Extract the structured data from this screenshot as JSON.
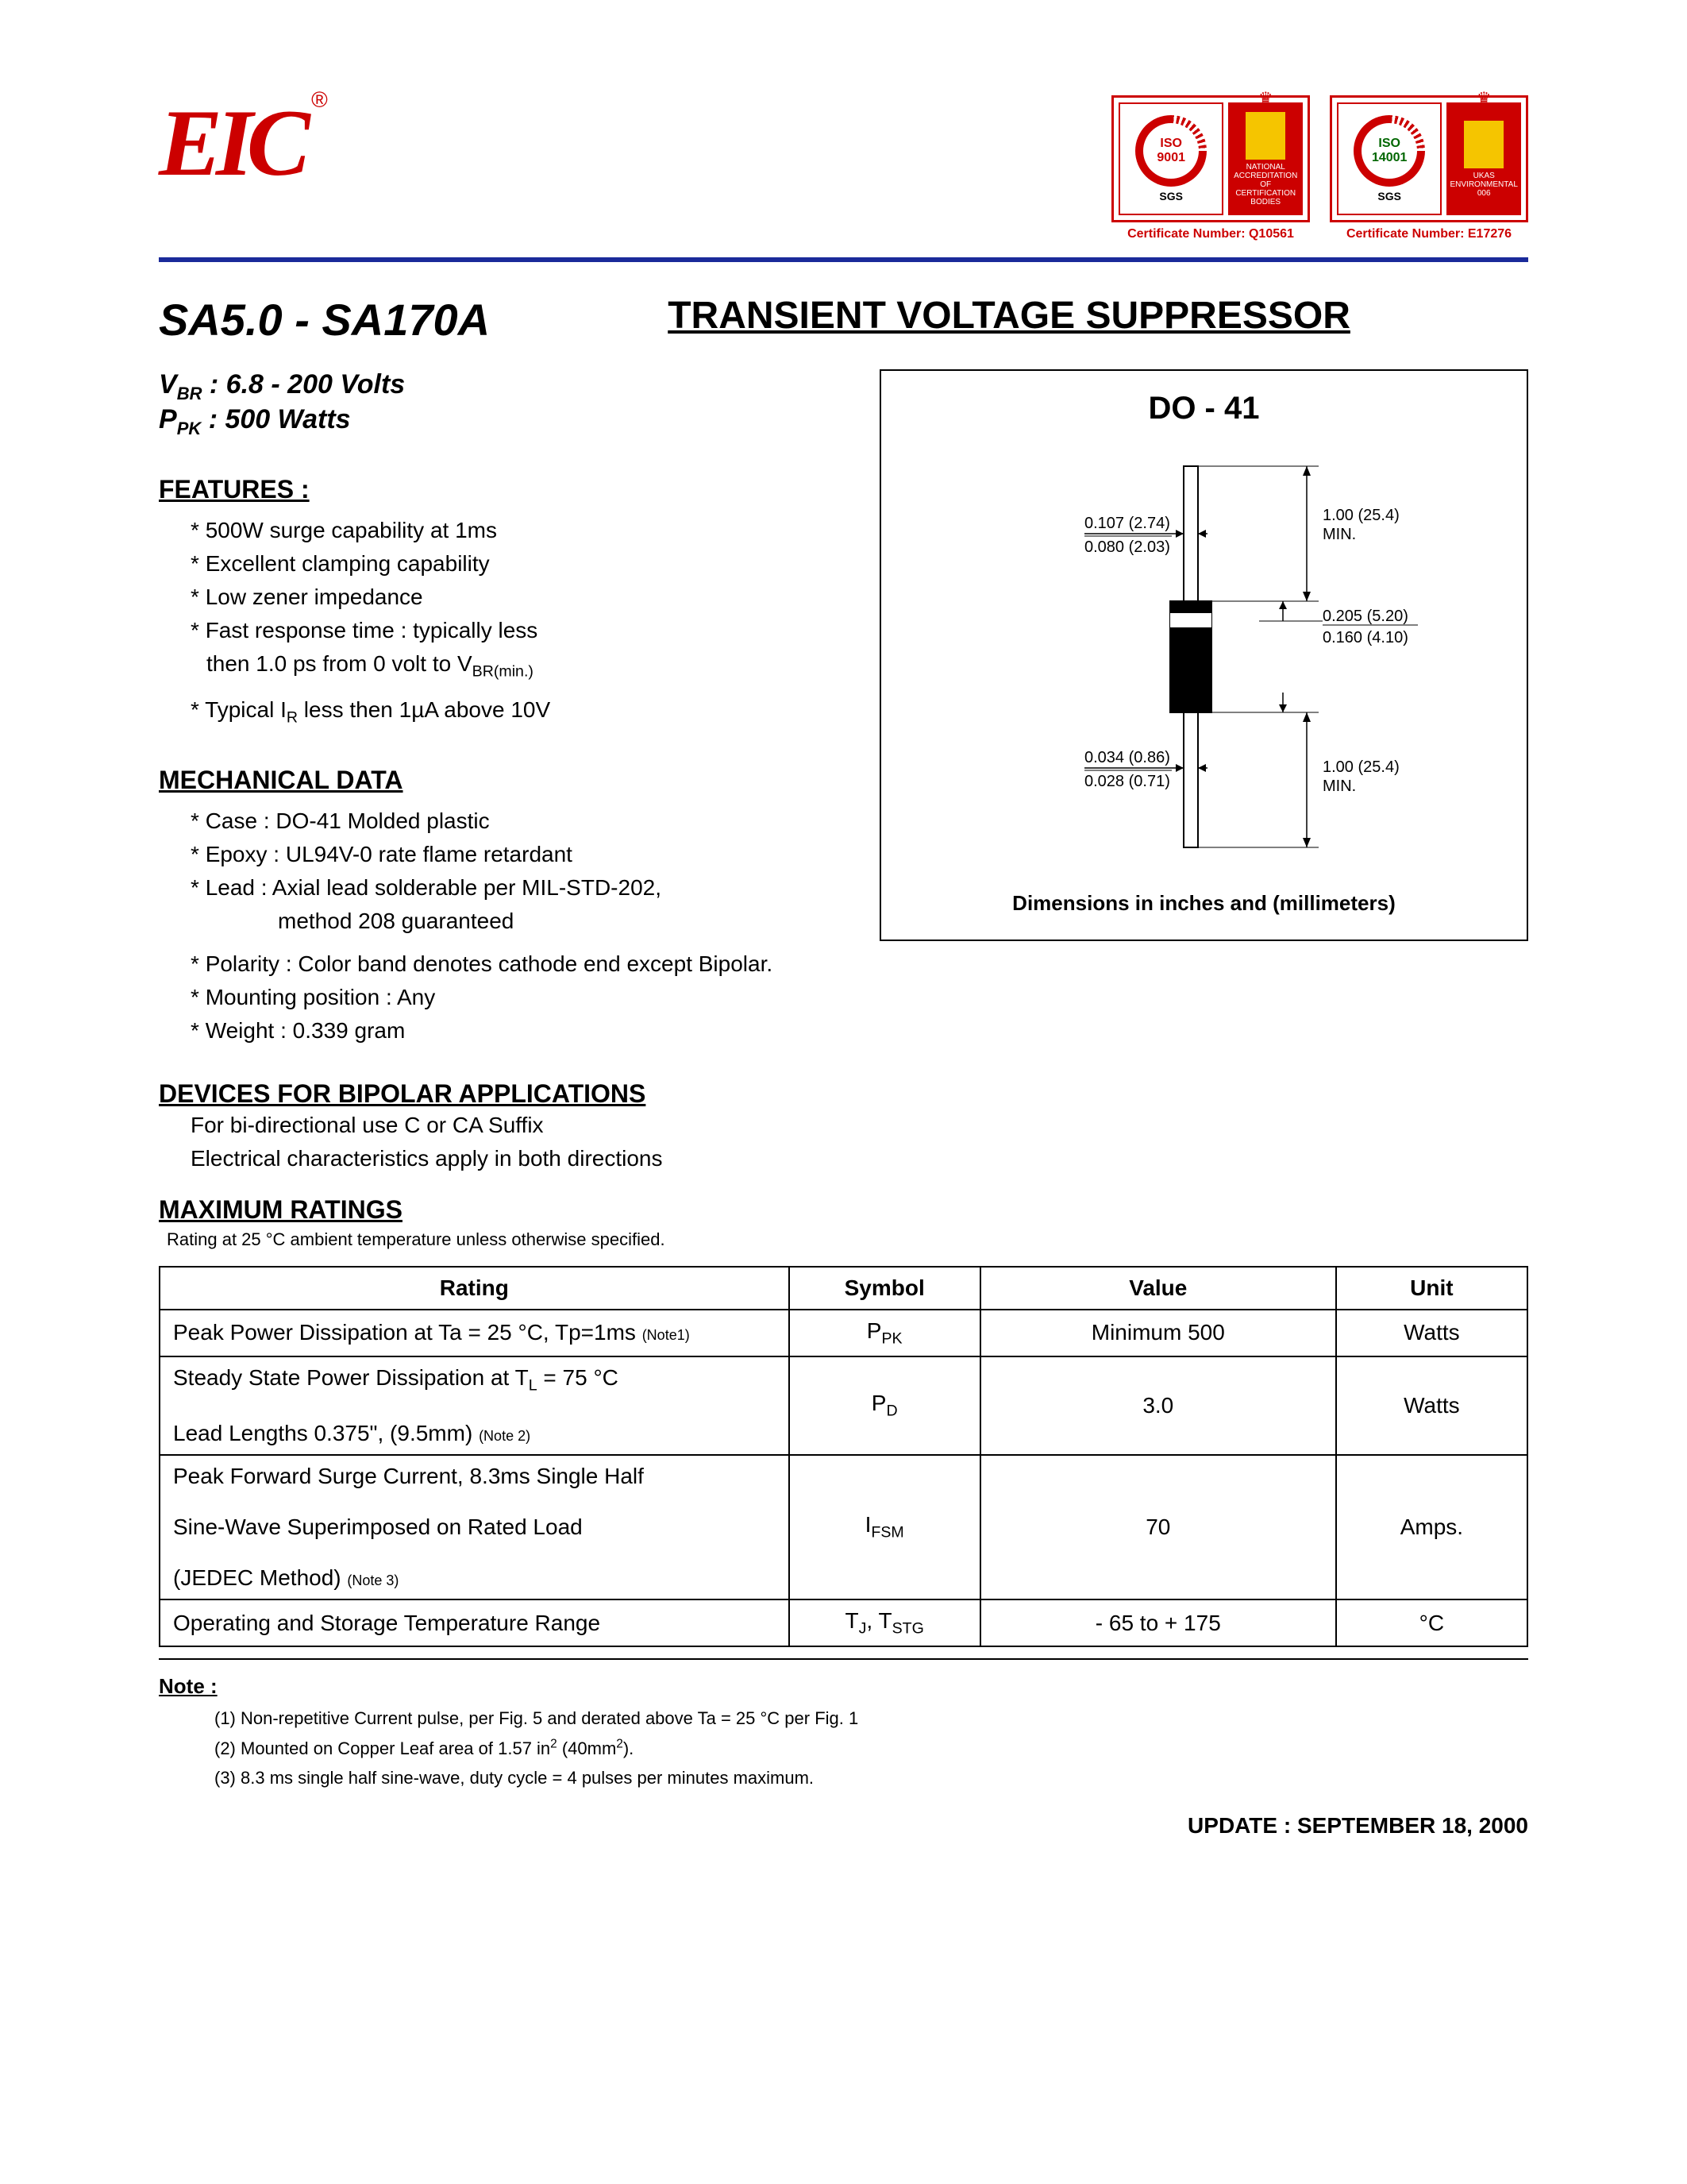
{
  "brand": {
    "logo_text": "EIC",
    "logo_color": "#cc0000",
    "reg_mark": "®"
  },
  "certs": [
    {
      "iso_top": "ISO",
      "iso_num": "9001",
      "sgs": "SGS",
      "side_text": "NATIONAL ACCREDITATION OF CERTIFICATION BODIES",
      "num_label": "Certificate Number: Q10561"
    },
    {
      "iso_top": "ISO",
      "iso_num": "14001",
      "sgs": "SGS",
      "side_text": "UKAS ENVIRONMENTAL 006",
      "num_label": "Certificate Number: E17276"
    }
  ],
  "title": {
    "part": "SA5.0 - SA170A",
    "main": "TRANSIENT VOLTAGE SUPPRESSOR"
  },
  "specs": {
    "vbr_label": "V",
    "vbr_sub": "BR",
    "vbr_val": " : 6.8 - 200 Volts",
    "ppk_label": "P",
    "ppk_sub": "PK",
    "ppk_val": " : 500 Watts"
  },
  "features": {
    "heading": "FEATURES :",
    "items": [
      "500W surge capability at 1ms",
      "Excellent clamping capability",
      "Low zener impedance",
      "Fast response time : typically less",
      "Typical I<sub>R</sub> less then 1µA above 10V"
    ],
    "cont_line": "then 1.0 ps from 0 volt to V<sub>BR(min.)</sub>"
  },
  "mechanical": {
    "heading": "MECHANICAL DATA",
    "items": [
      "Case : DO-41 Molded plastic",
      "Epoxy : UL94V-0 rate flame retardant",
      "Lead : Axial lead solderable per MIL-STD-202,",
      "Polarity : Color band denotes cathode end except Bipolar.",
      "Mounting position : Any",
      "Weight :  0.339 gram"
    ],
    "cont_line": "method 208 guaranteed"
  },
  "bipolar": {
    "heading": "DEVICES FOR BIPOLAR APPLICATIONS",
    "line1": "For bi-directional use C or CA Suffix",
    "line2": "Electrical characteristics apply in both directions"
  },
  "max": {
    "heading": "MAXIMUM RATINGS",
    "subtext": "Rating at 25 °C ambient temperature unless otherwise specified."
  },
  "package": {
    "title": "DO - 41",
    "caption": "Dimensions in inches and (millimeters)",
    "dims": {
      "lead_dia_top": "0.107 (2.74)",
      "lead_dia_bot": "0.080 (2.03)",
      "lead_len_top": "1.00 (25.4)",
      "lead_len_bot": "MIN.",
      "body_dia_top": "0.205 (5.20)",
      "body_dia_bot": "0.160 (4.10)",
      "lead_len2_top": "1.00 (25.4)",
      "lead_len2_bot": "MIN.",
      "band_top": "0.034 (0.86)",
      "band_bot": "0.028 (0.71)"
    },
    "svg": {
      "stroke": "#000000",
      "body_fill": "#000000",
      "lead_fill": "#ffffff"
    }
  },
  "ratings_table": {
    "headers": [
      "Rating",
      "Symbol",
      "Value",
      "Unit"
    ],
    "col_widths": [
      "46%",
      "14%",
      "26%",
      "14%"
    ],
    "rows": [
      {
        "rating": "Peak Power Dissipation at Ta = 25 °C, Tp=1ms <span class='note-ref'>(Note1)</span>",
        "symbol": "P<sub>PK</sub>",
        "value": "Minimum 500",
        "unit": "Watts"
      },
      {
        "rating": "Steady State Power Dissipation at T<sub>L</sub> = 75 °C<br><br>Lead Lengths 0.375\", (9.5mm) <span class='note-ref'>(Note 2)</span>",
        "symbol": "P<sub>D</sub>",
        "value": "3.0",
        "unit": "Watts"
      },
      {
        "rating": "Peak Forward Surge Current, 8.3ms Single Half<br><br>Sine-Wave Superimposed on Rated Load<br><br>(JEDEC Method) <span class='note-ref'>(Note 3)</span>",
        "symbol": "I<sub>FSM</sub>",
        "value": "70",
        "unit": "Amps."
      },
      {
        "rating": "Operating and Storage Temperature Range",
        "symbol": "T<sub>J</sub>, T<sub>STG</sub>",
        "value": "- 65 to + 175",
        "unit": "°C"
      }
    ]
  },
  "notes": {
    "heading": "Note :",
    "items": [
      "(1) Non-repetitive Current pulse, per Fig. 5 and derated above Ta = 25 °C per Fig. 1",
      "(2) Mounted on Copper Leaf area of 1.57 in<sup>2</sup> (40mm<sup>2</sup>).",
      "(3) 8.3 ms single half sine-wave, duty cycle = 4 pulses per minutes maximum."
    ]
  },
  "update": "UPDATE : SEPTEMBER 18, 2000",
  "colors": {
    "accent_red": "#cc0000",
    "divider_blue": "#1a2a9a",
    "text": "#000000",
    "bg": "#ffffff"
  },
  "fonts": {
    "body_family": "Arial, Helvetica, sans-serif",
    "logo_family": "Times New Roman, serif"
  }
}
